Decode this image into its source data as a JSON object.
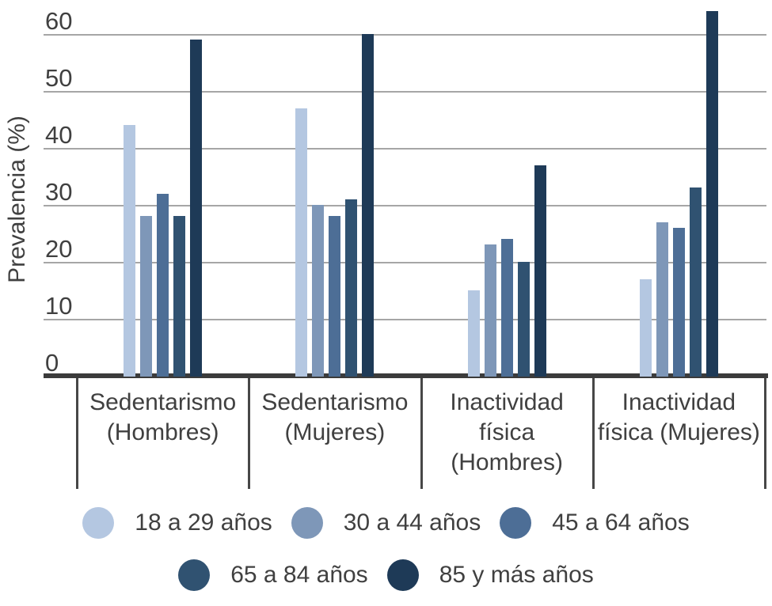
{
  "chart_data": {
    "type": "bar",
    "title": "",
    "xlabel": "",
    "ylabel": "Prevalencia (%)",
    "ylim": [
      0,
      66
    ],
    "yticks": [
      0,
      10,
      20,
      30,
      40,
      50,
      60
    ],
    "grid": "horizontal",
    "legend_position": "bottom",
    "categories": [
      "Sedentarismo (Hombres)",
      "Sedentarismo (Mujeres)",
      "Inactividad física (Hombres)",
      "Inactividad física (Mujeres)"
    ],
    "series": [
      {
        "name": "18 a 29 años",
        "color": "#b4c7e1",
        "values": [
          44,
          47,
          15,
          17
        ]
      },
      {
        "name": "30 a 44 años",
        "color": "#7e97b8",
        "values": [
          28,
          30,
          23,
          27
        ]
      },
      {
        "name": "45 a 64 años",
        "color": "#4d6e96",
        "values": [
          32,
          28,
          24,
          26
        ]
      },
      {
        "name": "65 a 84 años",
        "color": "#305271",
        "values": [
          28,
          31,
          20,
          33
        ]
      },
      {
        "name": "85 y más años",
        "color": "#1e3a57",
        "values": [
          59,
          60,
          37,
          64
        ]
      }
    ],
    "colors": {
      "text": "#404040",
      "gridline": "#a6a6a6",
      "axis_line": "#3b3b3b",
      "divider": "#474747",
      "background": "#ffffff"
    }
  }
}
